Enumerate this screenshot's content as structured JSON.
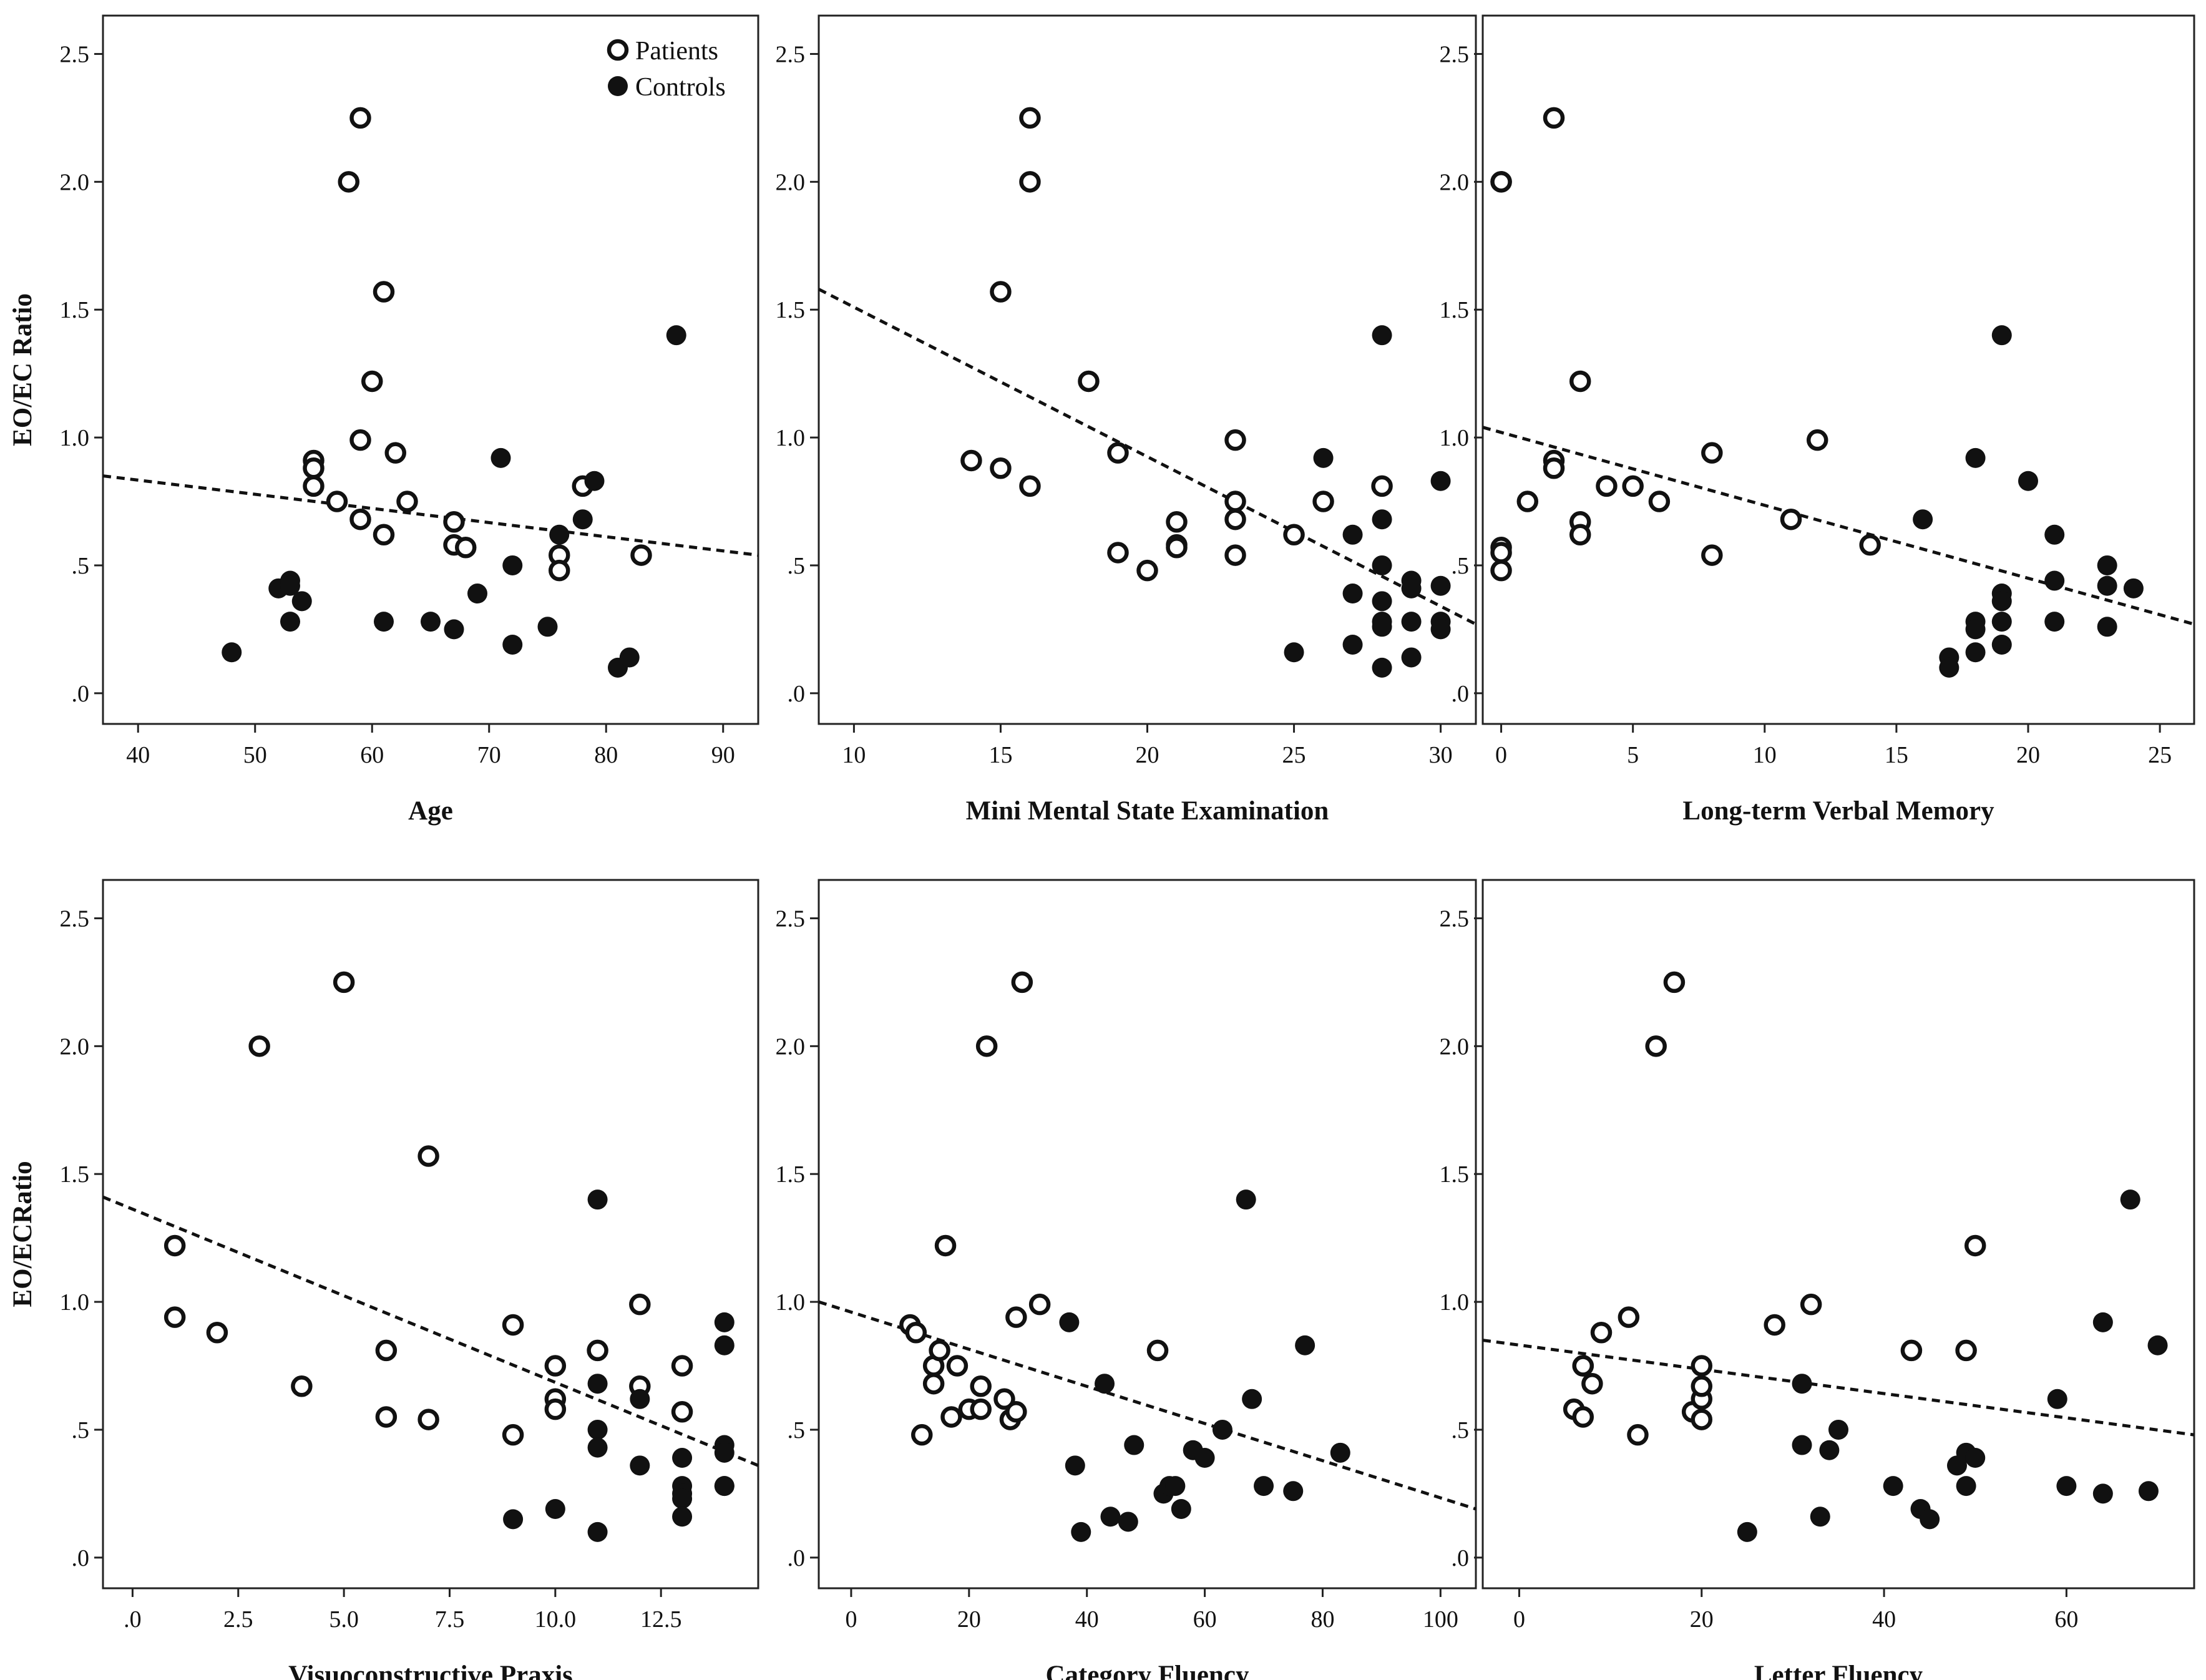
{
  "figure": {
    "legend": {
      "patients_label": "Patients",
      "controls_label": "Controls"
    }
  },
  "chart_data": [
    {
      "type": "scatter",
      "xlabel": "Age",
      "ylabel": "EO/EC Ratio",
      "xlim": [
        37,
        93
      ],
      "ylim": [
        -0.12,
        2.65
      ],
      "xticks": [
        40,
        50,
        60,
        70,
        80,
        90
      ],
      "xtick_labels": [
        "40",
        "50",
        "60",
        "70",
        "80",
        "90"
      ],
      "yticks": [
        0,
        0.5,
        1.0,
        1.5,
        2.0,
        2.5
      ],
      "ytick_labels": [
        ".0",
        ".5",
        "1.0",
        "1.5",
        "2.0",
        "2.5"
      ],
      "legend": "top-right",
      "grid": false,
      "fit_line": {
        "x": [
          37,
          93
        ],
        "y": [
          0.85,
          0.54
        ]
      },
      "series": [
        {
          "name": "Patients",
          "marker": "open-circle",
          "x": [
            58,
            59,
            61,
            60,
            59,
            55,
            55,
            62,
            55,
            57,
            63,
            59,
            67,
            61,
            67,
            68,
            76,
            76,
            78,
            83
          ],
          "y": [
            2.0,
            2.25,
            1.57,
            1.22,
            0.99,
            0.91,
            0.88,
            0.94,
            0.81,
            0.75,
            0.75,
            0.68,
            0.67,
            0.62,
            0.58,
            0.57,
            0.54,
            0.48,
            0.81,
            0.54
          ]
        },
        {
          "name": "Controls",
          "marker": "filled-circle",
          "x": [
            48,
            52,
            53,
            53,
            54,
            53,
            61,
            65,
            67,
            69,
            71,
            72,
            72,
            75,
            76,
            78,
            79,
            81,
            82,
            86
          ],
          "y": [
            0.16,
            0.41,
            0.44,
            0.42,
            0.36,
            0.28,
            0.28,
            0.28,
            0.25,
            0.39,
            0.92,
            0.5,
            0.19,
            0.26,
            0.62,
            0.68,
            0.83,
            0.1,
            0.14,
            1.4
          ]
        }
      ]
    },
    {
      "type": "scatter",
      "xlabel": "Mini Mental State Examination",
      "ylabel": "",
      "xlim": [
        8.8,
        31.2
      ],
      "ylim": [
        -0.12,
        2.65
      ],
      "xticks": [
        10,
        15,
        20,
        25,
        30
      ],
      "xtick_labels": [
        "10",
        "15",
        "20",
        "25",
        "30"
      ],
      "yticks": [
        0,
        0.5,
        1.0,
        1.5,
        2.0,
        2.5
      ],
      "ytick_labels": [
        ".0",
        ".5",
        "1.0",
        "1.5",
        "2.0",
        "2.5"
      ],
      "grid": false,
      "fit_line": {
        "x": [
          8.8,
          31.2
        ],
        "y": [
          1.58,
          0.27
        ]
      },
      "series": [
        {
          "name": "Patients",
          "marker": "open-circle",
          "x": [
            16,
            16,
            15,
            18,
            14,
            15,
            16,
            19,
            19,
            20,
            21,
            21,
            21,
            23,
            23,
            23,
            23,
            25,
            26,
            28
          ],
          "y": [
            2.25,
            2.0,
            1.57,
            1.22,
            0.91,
            0.88,
            0.81,
            0.94,
            0.55,
            0.48,
            0.67,
            0.58,
            0.57,
            0.99,
            0.75,
            0.68,
            0.54,
            0.62,
            0.75,
            0.81
          ]
        },
        {
          "name": "Controls",
          "marker": "filled-circle",
          "x": [
            25,
            26,
            27,
            27,
            27,
            28,
            28,
            28,
            28,
            28,
            28,
            28,
            29,
            29,
            29,
            29,
            30,
            30,
            30,
            30
          ],
          "y": [
            0.16,
            0.92,
            0.62,
            0.39,
            0.19,
            1.4,
            0.68,
            0.5,
            0.36,
            0.28,
            0.26,
            0.1,
            0.44,
            0.41,
            0.28,
            0.14,
            0.83,
            0.42,
            0.28,
            0.25
          ]
        }
      ]
    },
    {
      "type": "scatter",
      "xlabel": "Long-term Verbal Memory",
      "ylabel": "",
      "xlim": [
        -0.7,
        26.3
      ],
      "ylim": [
        -0.12,
        2.65
      ],
      "xticks": [
        0,
        5,
        10,
        15,
        20,
        25
      ],
      "xtick_labels": [
        "0",
        "5",
        "10",
        "15",
        "20",
        "25"
      ],
      "yticks": [
        0,
        0.5,
        1.0,
        1.5,
        2.0,
        2.5
      ],
      "ytick_labels": [
        ".0",
        ".5",
        "1.0",
        "1.5",
        "2.0",
        "2.5"
      ],
      "grid": false,
      "fit_line": {
        "x": [
          -0.7,
          26.3
        ],
        "y": [
          1.04,
          0.27
        ]
      },
      "series": [
        {
          "name": "Patients",
          "marker": "open-circle",
          "x": [
            0,
            0,
            0,
            0,
            1,
            2,
            2,
            2,
            3,
            3,
            3,
            4,
            5,
            6,
            8,
            8,
            11,
            12,
            14,
            0
          ],
          "y": [
            2.0,
            0.57,
            0.55,
            0.48,
            0.75,
            2.25,
            0.91,
            0.88,
            1.22,
            0.67,
            0.62,
            0.81,
            0.81,
            0.75,
            0.94,
            0.54,
            0.68,
            0.99,
            0.58,
            2.0
          ]
        },
        {
          "name": "Controls",
          "marker": "filled-circle",
          "x": [
            16,
            17,
            17,
            18,
            18,
            18,
            18,
            19,
            19,
            19,
            19,
            19,
            20,
            21,
            21,
            21,
            23,
            23,
            23,
            24
          ],
          "y": [
            0.68,
            0.14,
            0.1,
            0.92,
            0.28,
            0.25,
            0.16,
            1.4,
            0.39,
            0.36,
            0.28,
            0.19,
            0.83,
            0.62,
            0.44,
            0.28,
            0.5,
            0.42,
            0.26,
            0.41
          ]
        }
      ]
    },
    {
      "type": "scatter",
      "xlabel": "Visuoconstructive Praxis",
      "ylabel": "EO/ECRatio",
      "xlim": [
        -0.7,
        14.8
      ],
      "ylim": [
        -0.12,
        2.65
      ],
      "xticks": [
        0,
        2.5,
        5,
        7.5,
        10,
        12.5
      ],
      "xtick_labels": [
        ".0",
        "2.5",
        "5.0",
        "7.5",
        "10.0",
        "12.5"
      ],
      "yticks": [
        0,
        0.5,
        1.0,
        1.5,
        2.0,
        2.5
      ],
      "ytick_labels": [
        ".0",
        ".5",
        "1.0",
        "1.5",
        "2.0",
        "2.5"
      ],
      "grid": false,
      "fit_line": {
        "x": [
          -0.7,
          14.8
        ],
        "y": [
          1.41,
          0.36
        ]
      },
      "series": [
        {
          "name": "Patients",
          "marker": "open-circle",
          "x": [
            1,
            1,
            2,
            3,
            4,
            5,
            6,
            6,
            7,
            7,
            9,
            9,
            10,
            10,
            10,
            11,
            12,
            12,
            13,
            13
          ],
          "y": [
            1.22,
            0.94,
            0.88,
            2.0,
            0.67,
            2.25,
            0.81,
            0.55,
            1.57,
            0.54,
            0.91,
            0.48,
            0.75,
            0.62,
            0.58,
            0.81,
            0.99,
            0.67,
            0.75,
            0.57
          ]
        },
        {
          "name": "Controls",
          "marker": "filled-circle",
          "x": [
            9,
            10,
            11,
            11,
            11,
            11,
            11,
            12,
            12,
            13,
            13,
            13,
            13,
            13,
            14,
            14,
            14,
            14,
            14,
            14
          ],
          "y": [
            0.15,
            0.19,
            1.4,
            0.68,
            0.5,
            0.43,
            0.1,
            0.62,
            0.36,
            0.39,
            0.28,
            0.25,
            0.23,
            0.16,
            0.92,
            0.83,
            0.44,
            0.41,
            0.28,
            0.28
          ]
        }
      ]
    },
    {
      "type": "scatter",
      "xlabel": "Category Fluency",
      "ylabel": "",
      "xlim": [
        -5.5,
        106
      ],
      "ylim": [
        -0.12,
        2.65
      ],
      "xticks": [
        0,
        20,
        40,
        60,
        80,
        100
      ],
      "xtick_labels": [
        "0",
        "20",
        "40",
        "60",
        "80",
        "100"
      ],
      "yticks": [
        0,
        0.5,
        1.0,
        1.5,
        2.0,
        2.5
      ],
      "ytick_labels": [
        ".0",
        ".5",
        "1.0",
        "1.5",
        "2.0",
        "2.5"
      ],
      "grid": false,
      "fit_line": {
        "x": [
          -5.5,
          106
        ],
        "y": [
          1.0,
          0.19
        ]
      },
      "series": [
        {
          "name": "Patients",
          "marker": "open-circle",
          "x": [
            10,
            11,
            12,
            14,
            14,
            15,
            16,
            17,
            18,
            20,
            22,
            23,
            26,
            27,
            28,
            29,
            32,
            52,
            22,
            28
          ],
          "y": [
            0.91,
            0.88,
            0.48,
            0.75,
            0.68,
            0.81,
            1.22,
            0.55,
            0.75,
            0.58,
            0.67,
            2.0,
            0.62,
            0.54,
            0.57,
            2.25,
            0.99,
            0.81,
            0.58,
            0.94
          ]
        },
        {
          "name": "Controls",
          "marker": "filled-circle",
          "x": [
            37,
            38,
            39,
            43,
            44,
            47,
            48,
            53,
            54,
            55,
            56,
            58,
            60,
            63,
            67,
            68,
            70,
            75,
            77,
            83
          ],
          "y": [
            0.92,
            0.36,
            0.1,
            0.68,
            0.16,
            0.14,
            0.44,
            0.25,
            0.28,
            0.28,
            0.19,
            0.42,
            0.39,
            0.5,
            1.4,
            0.62,
            0.28,
            0.26,
            0.83,
            0.41
          ]
        }
      ]
    },
    {
      "type": "scatter",
      "xlabel": "Letter Fluency",
      "ylabel": "",
      "xlim": [
        -4,
        74
      ],
      "ylim": [
        -0.12,
        2.65
      ],
      "xticks": [
        0,
        20,
        40,
        60
      ],
      "xtick_labels": [
        "0",
        "20",
        "40",
        "60"
      ],
      "yticks": [
        0,
        0.5,
        1.0,
        1.5,
        2.0,
        2.5
      ],
      "ytick_labels": [
        ".0",
        ".5",
        "1.0",
        "1.5",
        "2.0",
        "2.5"
      ],
      "grid": false,
      "fit_line": {
        "x": [
          -4,
          74
        ],
        "y": [
          0.85,
          0.48
        ]
      },
      "series": [
        {
          "name": "Patients",
          "marker": "open-circle",
          "x": [
            6,
            7,
            7,
            8,
            9,
            12,
            13,
            15,
            17,
            19,
            20,
            20,
            20,
            20,
            28,
            32,
            43,
            49,
            50,
            7
          ],
          "y": [
            0.58,
            0.55,
            0.75,
            0.68,
            0.88,
            0.94,
            0.48,
            2.0,
            2.25,
            0.57,
            0.54,
            0.62,
            0.67,
            0.75,
            0.91,
            0.99,
            0.81,
            0.81,
            1.22,
            0.75
          ]
        },
        {
          "name": "Controls",
          "marker": "filled-circle",
          "x": [
            25,
            31,
            31,
            33,
            34,
            35,
            41,
            44,
            45,
            48,
            49,
            49,
            50,
            59,
            60,
            64,
            64,
            67,
            69,
            70
          ],
          "y": [
            0.1,
            0.68,
            0.44,
            0.16,
            0.42,
            0.5,
            0.28,
            0.19,
            0.15,
            0.36,
            0.41,
            0.28,
            0.39,
            0.62,
            0.28,
            0.92,
            0.25,
            1.4,
            0.26,
            0.83
          ]
        }
      ]
    }
  ]
}
